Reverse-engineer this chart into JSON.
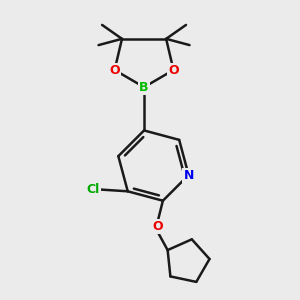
{
  "background_color": "#ebebeb",
  "bond_color": "#1a1a1a",
  "bond_width": 1.8,
  "atom_colors": {
    "B": "#00bb00",
    "O": "#ee0000",
    "N": "#0000ee",
    "Cl": "#00aa00",
    "C": "#1a1a1a"
  },
  "figsize": [
    3.0,
    3.0
  ],
  "dpi": 100
}
